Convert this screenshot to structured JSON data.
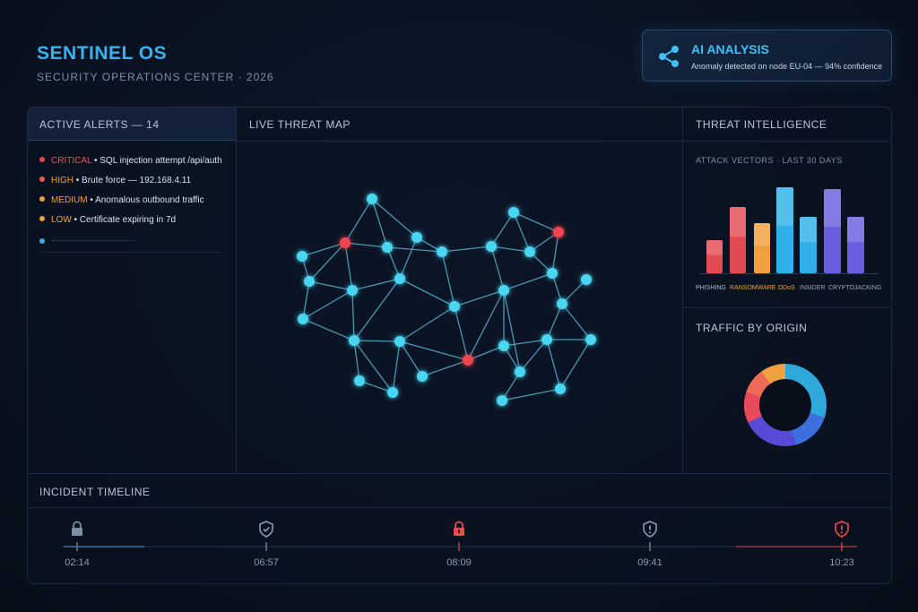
{
  "header": {
    "title": "SENTINEL OS",
    "subtitle": "SECURITY OPERATIONS CENTER · 2026"
  },
  "ai_card": {
    "icon": "share-nodes-icon",
    "title": "AI ANALYSIS",
    "text": "Anomaly detected on node EU-04 — 94% confidence"
  },
  "alerts": {
    "title": "ACTIVE ALERTS — 14",
    "items": [
      {
        "severity": "CRITICAL",
        "text": " • SQL injection attempt /api/auth",
        "dot": "#e8484a",
        "sev_color": "#ee5050"
      },
      {
        "severity": "HIGH",
        "text": " • Brute force — 192.168.4.11",
        "dot": "#ef5a4a",
        "sev_color": "#f0a040"
      },
      {
        "severity": "MEDIUM",
        "text": " • Anomalous outbound traffic",
        "dot": "#f0a040",
        "sev_color": "#f0a040"
      },
      {
        "severity": "LOW",
        "text": " • Certificate expiring in 7d",
        "dot": "#f0a040",
        "sev_color": "#f0a040"
      }
    ]
  },
  "map": {
    "title": "LIVE THREAT MAP"
  },
  "intel": {
    "title": "THREAT INTELLIGENCE",
    "vectors_label": "ATTACK VECTORS · LAST 30 DAYS",
    "traffic_title": "TRAFFIC BY ORIGIN"
  },
  "chart_data": [
    {
      "type": "bar",
      "categories": [
        "PHISHING",
        "RANSOMWARE",
        "DDoS",
        "INSIDER",
        "CRYPTOJACKING"
      ],
      "bars": [
        {
          "category": "PHISHING",
          "value": 37,
          "color": "#e34b52"
        },
        {
          "category": "RANSOMWARE",
          "value": 74,
          "color": "#e34b52"
        },
        {
          "category": "RANSOMWARE",
          "value": 56,
          "color": "#f0a040"
        },
        {
          "category": "DDoS",
          "value": 96,
          "color": "#2fb0e8"
        },
        {
          "category": "INSIDER",
          "value": 63,
          "color": "#2fb0e8"
        },
        {
          "category": "INSIDER",
          "value": 94,
          "color": "#6a5ee0"
        },
        {
          "category": "CRYPTOJACKING",
          "value": 63,
          "color": "#6a5ee0"
        }
      ],
      "label_colors": [
        "#aebdd0",
        "#f0a040",
        "#f0a040",
        "#9aa9be",
        "#9aa9be"
      ],
      "ylim": [
        0,
        100
      ]
    },
    {
      "type": "pie",
      "slices": [
        {
          "value": 30,
          "color": "#2fa8dc"
        },
        {
          "value": 16,
          "color": "#3d6fdf"
        },
        {
          "value": 22,
          "color": "#5a4bd6"
        },
        {
          "value": 12,
          "color": "#e84a5a"
        },
        {
          "value": 10,
          "color": "#f06a58"
        },
        {
          "value": 10,
          "color": "#f0a040"
        }
      ]
    }
  ],
  "timeline": {
    "title": "INCIDENT TIMELINE",
    "events": [
      {
        "time": "02:14",
        "icon": "lock-icon",
        "color": "#7e8ea6"
      },
      {
        "time": "06:57",
        "icon": "shield-check-icon",
        "color": "#8a9ab0"
      },
      {
        "time": "08:09",
        "icon": "lock-alert-icon",
        "color": "#ee4c4c"
      },
      {
        "time": "09:41",
        "icon": "shield-alert-icon",
        "color": "#8a9ab0"
      },
      {
        "time": "10:23",
        "icon": "shield-alert-icon",
        "color": "#ee4c4c"
      }
    ]
  }
}
